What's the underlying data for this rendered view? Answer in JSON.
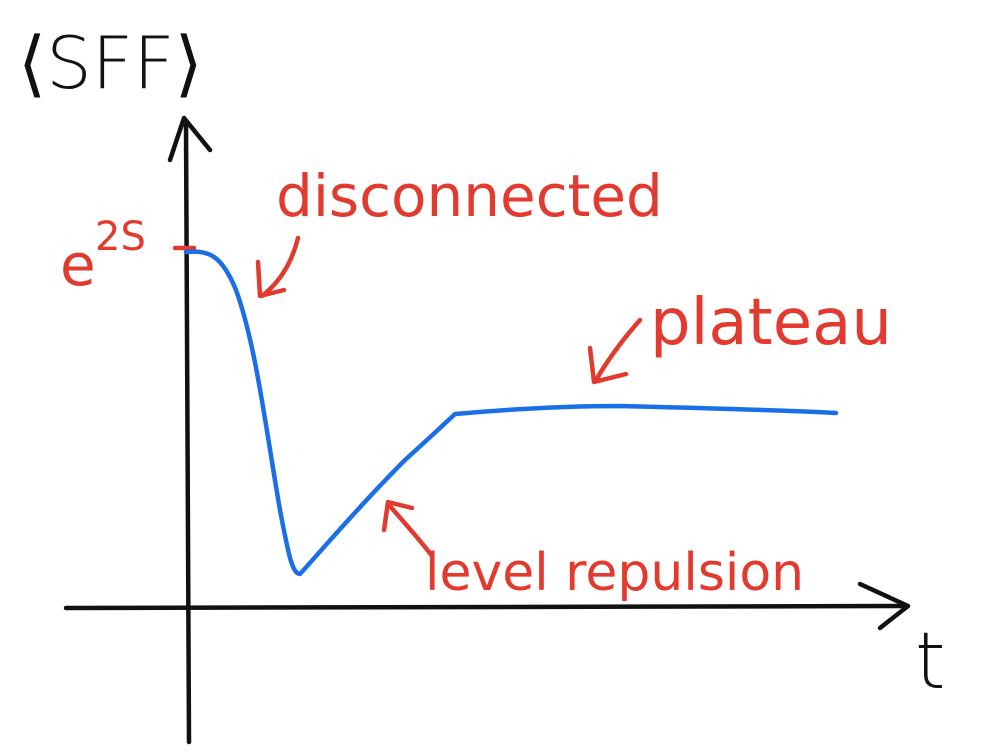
{
  "diagram": {
    "y_axis_label": "⟨SFF⟩",
    "x_axis_label": "t",
    "y_tick_label": "e",
    "y_tick_superscript": "2S",
    "annotations": {
      "disconnected": "disconnected",
      "plateau": "plateau",
      "level_repulsion": "level repulsion"
    },
    "colors": {
      "axis": "#111111",
      "curve": "#1a6fe8",
      "annotation": "#e23a2e"
    }
  }
}
